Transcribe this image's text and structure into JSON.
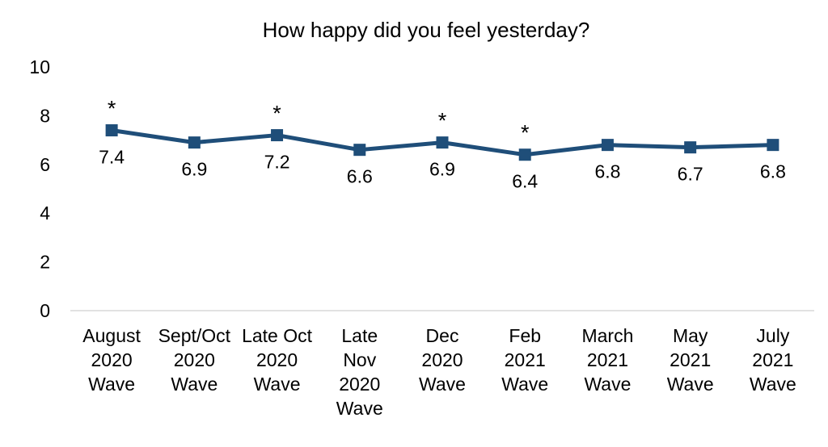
{
  "chart_data": {
    "type": "line",
    "title": "How happy did you feel yesterday?",
    "xlabel": "",
    "ylabel": "",
    "ylim": [
      0,
      10
    ],
    "yticks": [
      "0",
      "2",
      "4",
      "6",
      "8",
      "10"
    ],
    "grid": false,
    "categories": [
      [
        "August",
        "2020",
        "Wave"
      ],
      [
        "Sept/Oct",
        "2020",
        "Wave"
      ],
      [
        "Late Oct",
        "2020",
        "Wave"
      ],
      [
        "Late",
        "Nov",
        "2020",
        "Wave"
      ],
      [
        "Dec",
        "2020",
        "Wave"
      ],
      [
        "Feb",
        "2021",
        "Wave"
      ],
      [
        "March",
        "2021",
        "Wave"
      ],
      [
        "May",
        "2021",
        "Wave"
      ],
      [
        "July",
        "2021",
        "Wave"
      ]
    ],
    "series": [
      {
        "name": "How happy did you feel yesterday?",
        "color": "#1f4e79",
        "values": [
          7.4,
          6.9,
          7.2,
          6.6,
          6.9,
          6.4,
          6.8,
          6.7,
          6.8
        ],
        "labels": [
          "7.4",
          "6.9",
          "7.2",
          "6.6",
          "6.9",
          "6.4",
          "6.8",
          "6.7",
          "6.8"
        ],
        "significance_markers": [
          "*",
          "",
          "*",
          "",
          "*",
          "*",
          "",
          "",
          ""
        ]
      }
    ]
  }
}
